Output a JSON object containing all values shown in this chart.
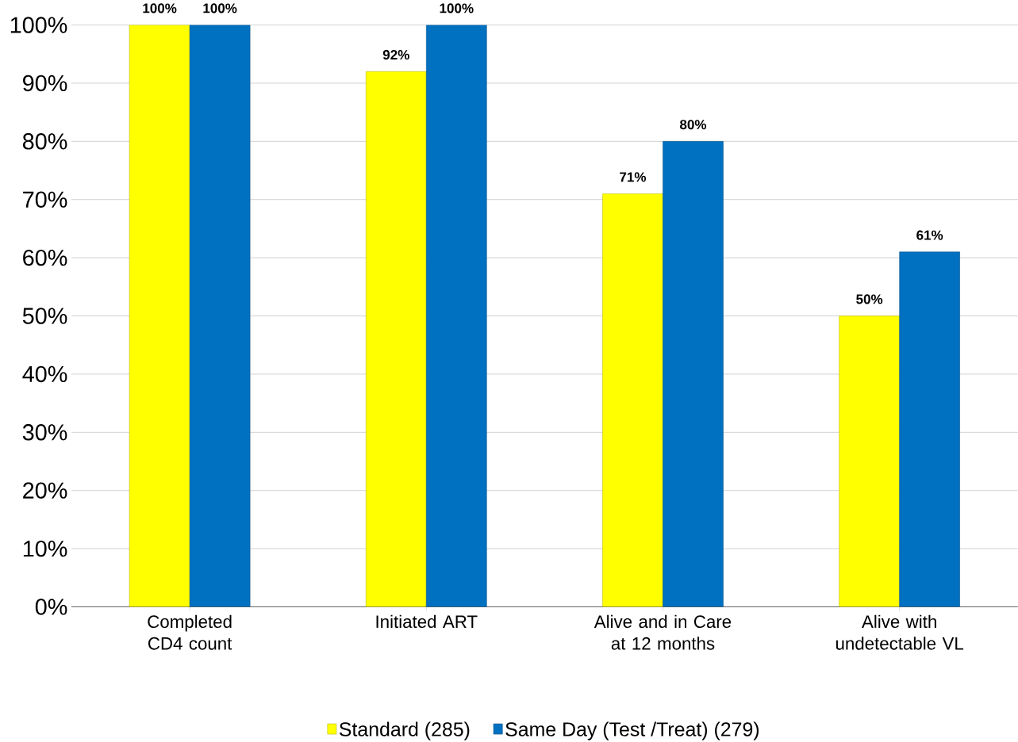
{
  "chart_data": {
    "type": "bar",
    "categories": [
      "Completed CD4 count",
      "Initiated ART",
      "Alive and in Care at 12 months",
      "Alive with undetectable VL"
    ],
    "series": [
      {
        "name": "Standard (285)",
        "color": "#ffff00",
        "values": [
          100,
          92,
          71,
          50
        ],
        "value_labels": [
          "100%",
          "92%",
          "71%",
          "50%"
        ]
      },
      {
        "name": "Same Day (Test /Treat)  (279)",
        "color": "#0070c0",
        "values": [
          100,
          100,
          80,
          61
        ],
        "value_labels": [
          "100%",
          "100%",
          "80%",
          "61%"
        ]
      }
    ],
    "ylim": [
      0,
      100
    ],
    "yticks": [
      {
        "value": 0,
        "label": "0%"
      },
      {
        "value": 10,
        "label": "10%"
      },
      {
        "value": 20,
        "label": "20%"
      },
      {
        "value": 30,
        "label": "30%"
      },
      {
        "value": 40,
        "label": "40%"
      },
      {
        "value": 50,
        "label": "50%"
      },
      {
        "value": 60,
        "label": "60%"
      },
      {
        "value": 70,
        "label": "70%"
      },
      {
        "value": 80,
        "label": "80%"
      },
      {
        "value": 90,
        "label": "90%"
      },
      {
        "value": 100,
        "label": "100%"
      }
    ],
    "grid": "y",
    "legend": "bottom"
  }
}
